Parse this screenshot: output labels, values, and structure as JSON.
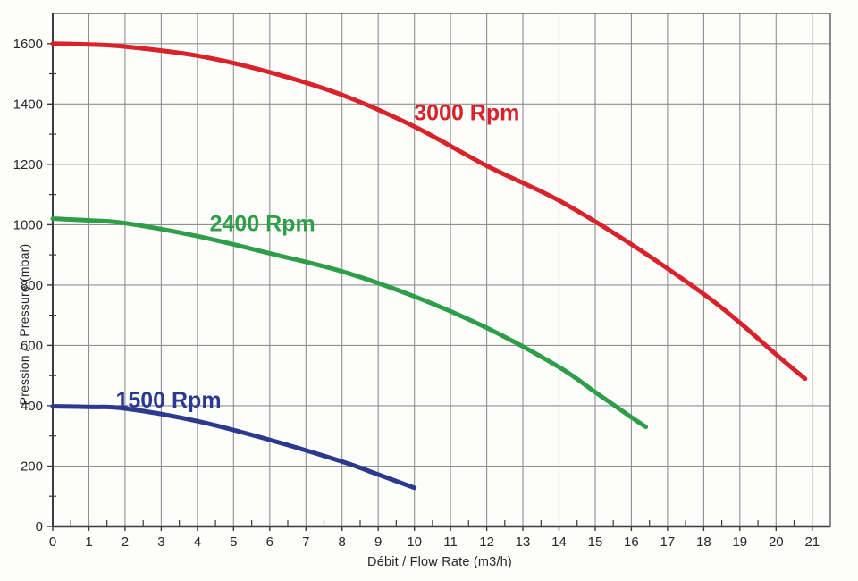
{
  "chart_data": {
    "type": "line",
    "title": "",
    "xlabel": "Débit / Flow Rate (m3/h)",
    "ylabel": "Pression /   Pressure (mbar)",
    "xlim": [
      0,
      21.5
    ],
    "ylim": [
      0,
      1700
    ],
    "x_ticks": [
      0,
      1,
      2,
      3,
      4,
      5,
      6,
      7,
      8,
      9,
      10,
      11,
      12,
      13,
      14,
      15,
      16,
      17,
      18,
      19,
      20,
      21
    ],
    "x_minor_step": 0.5,
    "y_ticks": [
      0,
      200,
      400,
      600,
      800,
      1000,
      1200,
      1400,
      1600
    ],
    "y_minor_step": 100,
    "grid": true,
    "legend_position": "labels-on-curves",
    "colors": {
      "grid": "#8f8f8f",
      "border": "#5c5c5c",
      "axis": "#3c3c3c",
      "tick_text": "#2a2627"
    },
    "series": [
      {
        "name": "3000 Rpm",
        "color": "#d8232b",
        "label": {
          "text": "3000 Rpm",
          "x": 11.45,
          "y": 1372
        },
        "points": [
          [
            0,
            1600
          ],
          [
            1,
            1597
          ],
          [
            2,
            1590
          ],
          [
            4,
            1560
          ],
          [
            6,
            1505
          ],
          [
            8,
            1430
          ],
          [
            10,
            1325
          ],
          [
            12,
            1195
          ],
          [
            14,
            1080
          ],
          [
            16,
            935
          ],
          [
            18,
            770
          ],
          [
            19,
            675
          ],
          [
            20,
            570
          ],
          [
            20.8,
            490
          ]
        ]
      },
      {
        "name": "2400 Rpm",
        "color": "#2f9e48",
        "label": {
          "text": "2400 Rpm",
          "x": 5.8,
          "y": 1005
        },
        "points": [
          [
            0,
            1020
          ],
          [
            1,
            1014
          ],
          [
            2,
            1005
          ],
          [
            4,
            962
          ],
          [
            6,
            905
          ],
          [
            8,
            845
          ],
          [
            10,
            762
          ],
          [
            12,
            658
          ],
          [
            14,
            528
          ],
          [
            15,
            445
          ],
          [
            16,
            362
          ],
          [
            16.4,
            330
          ]
        ]
      },
      {
        "name": "1500 Rpm",
        "color": "#2b3a8f",
        "label": {
          "text": "1500 Rpm",
          "x": 3.2,
          "y": 420
        },
        "points": [
          [
            0,
            398
          ],
          [
            1,
            396
          ],
          [
            2,
            391
          ],
          [
            4,
            349
          ],
          [
            6,
            287
          ],
          [
            8,
            215
          ],
          [
            9,
            172
          ],
          [
            10,
            128
          ]
        ]
      }
    ]
  }
}
